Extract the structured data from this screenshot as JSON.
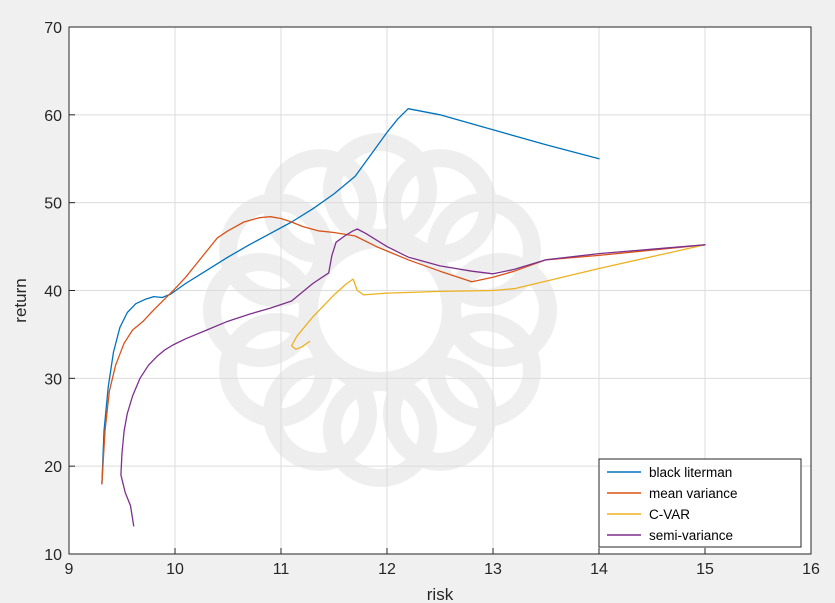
{
  "chart_data": {
    "type": "line",
    "title": "",
    "xlabel": "risk",
    "ylabel": "return",
    "xlim": [
      9,
      16
    ],
    "ylim": [
      10,
      70
    ],
    "xticks": [
      "9",
      "10",
      "11",
      "12",
      "13",
      "14",
      "15",
      "16"
    ],
    "yticks": [
      "10",
      "20",
      "30",
      "40",
      "50",
      "60",
      "70"
    ],
    "grid": true,
    "legend_position": "bottom-right",
    "series": [
      {
        "name": "black literman",
        "color": "#0072bd",
        "x": [
          9.31,
          9.33,
          9.37,
          9.42,
          9.48,
          9.55,
          9.63,
          9.72,
          9.8,
          9.88,
          9.96,
          10.1,
          10.3,
          10.5,
          10.7,
          10.9,
          11.1,
          11.3,
          11.5,
          11.7,
          11.85,
          12.0,
          12.1,
          12.2,
          12.5,
          13.0,
          13.5,
          14.0
        ],
        "y": [
          18.0,
          24.0,
          29.0,
          33.0,
          35.8,
          37.5,
          38.5,
          39.0,
          39.3,
          39.2,
          39.6,
          40.8,
          42.3,
          43.8,
          45.2,
          46.5,
          47.8,
          49.3,
          51.0,
          53.0,
          55.5,
          58.0,
          59.5,
          60.7,
          60.0,
          58.3,
          56.6,
          55.0
        ]
      },
      {
        "name": "mean variance",
        "color": "#d95319",
        "x": [
          9.31,
          9.34,
          9.38,
          9.44,
          9.52,
          9.6,
          9.7,
          9.8,
          9.9,
          10.0,
          10.1,
          10.2,
          10.3,
          10.4,
          10.5,
          10.65,
          10.8,
          10.9,
          11.0,
          11.1,
          11.2,
          11.35,
          11.5,
          11.7,
          11.9,
          12.2,
          12.5,
          12.8,
          13.0,
          13.2,
          13.5,
          14.0,
          14.5,
          15.0
        ],
        "y": [
          18.0,
          24.0,
          28.5,
          31.5,
          34.0,
          35.5,
          36.5,
          37.8,
          39.0,
          40.2,
          41.5,
          43.0,
          44.5,
          46.0,
          46.8,
          47.8,
          48.3,
          48.4,
          48.2,
          47.8,
          47.3,
          46.8,
          46.6,
          46.2,
          45.0,
          43.5,
          42.2,
          41.0,
          41.5,
          42.2,
          43.5,
          44.0,
          44.6,
          45.2
        ]
      },
      {
        "name": "C-VAR",
        "color": "#edb120",
        "x": [
          11.27,
          11.2,
          11.14,
          11.1,
          11.15,
          11.3,
          11.5,
          11.62,
          11.68,
          11.72,
          11.78,
          12.0,
          12.5,
          13.0,
          13.2,
          14.0,
          15.0
        ],
        "y": [
          34.2,
          33.6,
          33.3,
          33.7,
          34.8,
          37.0,
          39.5,
          40.8,
          41.3,
          40.0,
          39.5,
          39.7,
          39.9,
          40.0,
          40.2,
          42.5,
          45.2
        ]
      },
      {
        "name": "semi-variance",
        "color": "#7e2f8e",
        "x": [
          9.61,
          9.58,
          9.53,
          9.49,
          9.5,
          9.52,
          9.55,
          9.6,
          9.67,
          9.75,
          9.83,
          9.9,
          9.98,
          10.1,
          10.3,
          10.5,
          10.7,
          10.9,
          11.1,
          11.3,
          11.45,
          11.48,
          11.52,
          11.6,
          11.68,
          11.72,
          11.8,
          12.0,
          12.2,
          12.5,
          12.8,
          13.0,
          13.2,
          13.5,
          14.0,
          14.5,
          15.0
        ],
        "y": [
          13.2,
          15.5,
          17.0,
          19.0,
          21.5,
          24.0,
          26.0,
          28.0,
          30.0,
          31.5,
          32.5,
          33.2,
          33.8,
          34.5,
          35.5,
          36.5,
          37.3,
          38.0,
          38.8,
          40.8,
          42.0,
          44.0,
          45.5,
          46.2,
          46.8,
          47.0,
          46.5,
          45.0,
          43.8,
          42.8,
          42.2,
          41.9,
          42.4,
          43.5,
          44.2,
          44.7,
          45.2
        ]
      }
    ]
  }
}
